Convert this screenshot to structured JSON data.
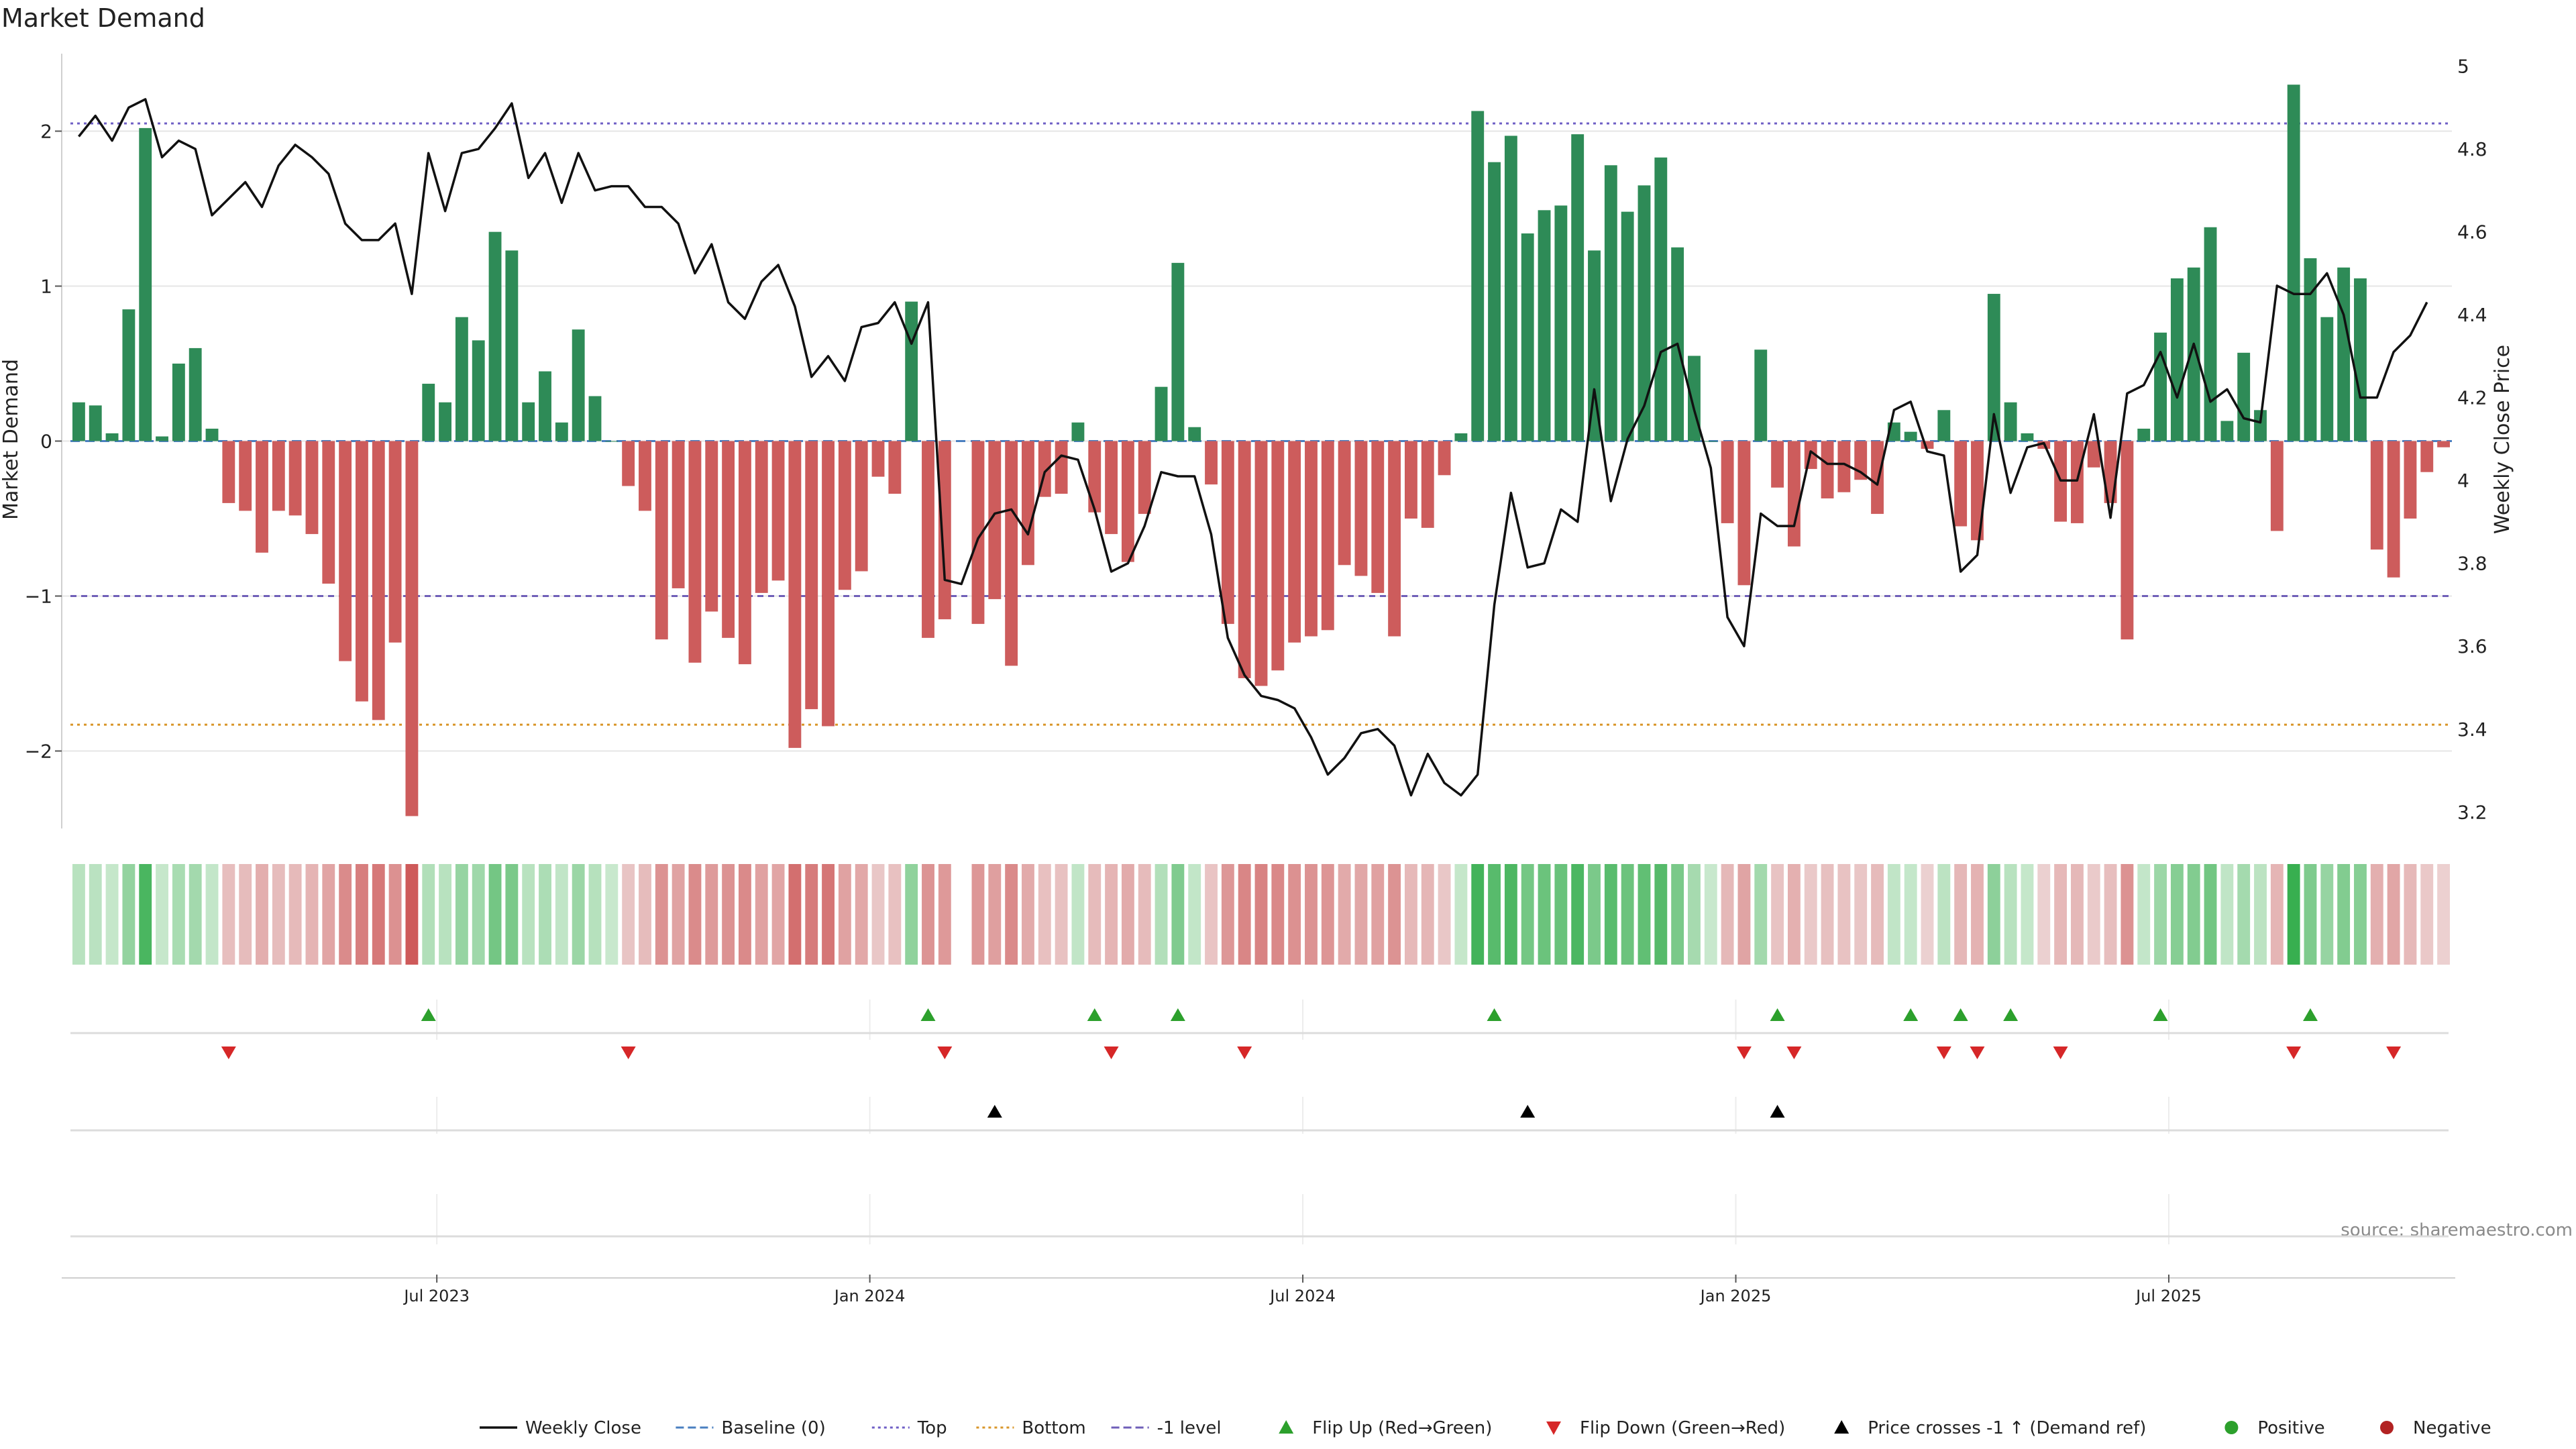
{
  "chart_data": {
    "type": "bar+line",
    "title": "Market Demand",
    "ylabel_left": "Market Demand",
    "ylabel_right": "Weekly Close Price",
    "ylim_left": [
      -2.5,
      2.5
    ],
    "ylim_right": [
      3.16,
      5.03
    ],
    "yticks_left": [
      -2,
      -1,
      0,
      1,
      2
    ],
    "yticks_left_labels": [
      "−2",
      "−1",
      "0",
      "1",
      "2"
    ],
    "yticks_right": [
      3.2,
      3.4,
      3.6,
      3.8,
      4,
      4.2,
      4.4,
      4.6,
      4.8,
      5
    ],
    "yticks_right_labels": [
      "3.2",
      "3.4",
      "3.6",
      "3.8",
      "4",
      "4.2",
      "4.4",
      "4.6",
      "4.8",
      "5"
    ],
    "xtick_labels": [
      "Jul 2023",
      "Jan 2024",
      "Jul 2024",
      "Jan 2025",
      "Jul 2025"
    ],
    "xtick_weeks": [
      22,
      48,
      74,
      100,
      126
    ],
    "levels": {
      "top": 2.05,
      "bottom": -1.83,
      "minus_one": -1.0,
      "baseline": 0
    },
    "demand": [
      0.25,
      0.23,
      0.05,
      0.85,
      2.02,
      0.03,
      0.5,
      0.6,
      0.08,
      -0.4,
      -0.45,
      -0.72,
      -0.45,
      -0.48,
      -0.6,
      -0.92,
      -1.42,
      -1.68,
      -1.8,
      -1.3,
      -2.42,
      0.37,
      0.25,
      0.8,
      0.65,
      1.35,
      1.23,
      0.25,
      0.45,
      0.12,
      0.72,
      0.29,
      0.0,
      -0.29,
      -0.45,
      -1.28,
      -0.95,
      -1.43,
      -1.1,
      -1.27,
      -1.44,
      -0.98,
      -0.9,
      -1.98,
      -1.73,
      -1.84,
      -0.96,
      -0.84,
      -0.23,
      -0.34,
      0.9,
      -1.27,
      -1.15,
      null,
      -1.18,
      -1.02,
      -1.45,
      -0.8,
      -0.36,
      -0.34,
      0.12,
      -0.46,
      -0.6,
      -0.78,
      -0.47,
      0.35,
      1.15,
      0.09,
      -0.28,
      -1.18,
      -1.53,
      -1.58,
      -1.48,
      -1.3,
      -1.26,
      -1.22,
      -0.8,
      -0.87,
      -0.98,
      -1.26,
      -0.5,
      -0.56,
      -0.22,
      0.05,
      2.13,
      1.8,
      1.97,
      1.34,
      1.49,
      1.52,
      1.98,
      1.23,
      1.78,
      1.48,
      1.65,
      1.83,
      1.25,
      0.55,
      0.0,
      -0.53,
      -0.93,
      0.59,
      -0.3,
      -0.68,
      -0.18,
      -0.37,
      -0.33,
      -0.25,
      -0.47,
      0.12,
      0.06,
      -0.05,
      0.2,
      -0.55,
      -0.64,
      0.95,
      0.25,
      0.05,
      -0.05,
      -0.52,
      -0.53,
      -0.17,
      -0.4,
      -1.28,
      0.08,
      0.7,
      1.05,
      1.12,
      1.38,
      0.13,
      0.57,
      0.2,
      -0.58,
      2.3,
      1.18,
      0.8,
      1.12,
      1.05,
      -0.7,
      -0.88,
      -0.5,
      -0.2,
      -0.04
    ],
    "close": [
      4.83,
      4.88,
      4.82,
      4.9,
      4.92,
      4.78,
      4.82,
      4.8,
      4.64,
      4.68,
      4.72,
      4.66,
      4.76,
      4.81,
      4.78,
      4.74,
      4.62,
      4.58,
      4.58,
      4.62,
      4.45,
      4.79,
      4.65,
      4.79,
      4.8,
      4.85,
      4.91,
      4.73,
      4.79,
      4.67,
      4.79,
      4.7,
      4.71,
      4.71,
      4.66,
      4.66,
      4.62,
      4.5,
      4.57,
      4.43,
      4.39,
      4.48,
      4.52,
      4.42,
      4.25,
      4.3,
      4.24,
      4.37,
      4.38,
      4.43,
      4.33,
      4.43,
      3.76,
      3.75,
      3.86,
      3.92,
      3.93,
      3.87,
      4.02,
      4.06,
      4.05,
      3.93,
      3.78,
      3.8,
      3.89,
      4.02,
      4.01,
      4.01,
      3.87,
      3.62,
      3.53,
      3.48,
      3.47,
      3.45,
      3.38,
      3.29,
      3.33,
      3.39,
      3.4,
      3.36,
      3.24,
      3.34,
      3.27,
      3.24,
      3.29,
      3.7,
      3.97,
      3.79,
      3.8,
      3.93,
      3.9,
      4.22,
      3.95,
      4.1,
      4.18,
      4.31,
      4.33,
      4.17,
      4.03,
      3.67,
      3.6,
      3.92,
      3.89,
      3.89,
      4.07,
      4.04,
      4.04,
      4.02,
      3.99,
      4.17,
      4.19,
      4.07,
      4.06,
      3.78,
      3.82,
      4.16,
      3.97,
      4.08,
      4.09,
      4.0,
      4.0,
      4.16,
      3.91,
      4.21,
      4.23,
      4.31,
      4.2,
      4.33,
      4.19,
      4.22,
      4.15,
      4.14,
      4.47,
      4.45,
      4.45,
      4.5,
      4.4,
      4.2,
      4.2,
      4.31,
      4.35,
      4.43
    ],
    "heat_missing": [
      53
    ],
    "flip_up_weeks": [
      21,
      51,
      61,
      66,
      85,
      102,
      110,
      113,
      116,
      125,
      134
    ],
    "flip_down_weeks": [
      9,
      33,
      52,
      62,
      70,
      100,
      103,
      112,
      114,
      119,
      133,
      139
    ],
    "price_cross_weeks": [
      55,
      87,
      102
    ],
    "legend": [
      {
        "label": "Weekly Close",
        "kind": "line",
        "color": "#111111"
      },
      {
        "label": "Baseline (0)",
        "kind": "dash",
        "color": "#4a7fc0"
      },
      {
        "label": "Top",
        "kind": "dot",
        "color": "#6f5fc6"
      },
      {
        "label": "Bottom",
        "kind": "dot",
        "color": "#d9962a"
      },
      {
        "label": "-1 level",
        "kind": "dash",
        "color": "#6f5fb8"
      },
      {
        "label": "Flip Up (Red→Green)",
        "kind": "tri-up",
        "color": "#2ca02c"
      },
      {
        "label": "Flip Down (Green→Red)",
        "kind": "tri-down",
        "color": "#d62728"
      },
      {
        "label": "Price crosses -1 ↑ (Demand ref)",
        "kind": "tri-up",
        "color": "#000000"
      },
      {
        "label": "Positive",
        "kind": "circle",
        "color": "#2ca02c"
      },
      {
        "label": "Negative",
        "kind": "circle",
        "color": "#b22222"
      }
    ],
    "source": "source: sharemaestro.com"
  },
  "colors": {
    "positive_bar": "#2e8b57",
    "negative_bar": "#cd5c5c",
    "close_line": "#111111",
    "grid": "#e6e6e6"
  }
}
